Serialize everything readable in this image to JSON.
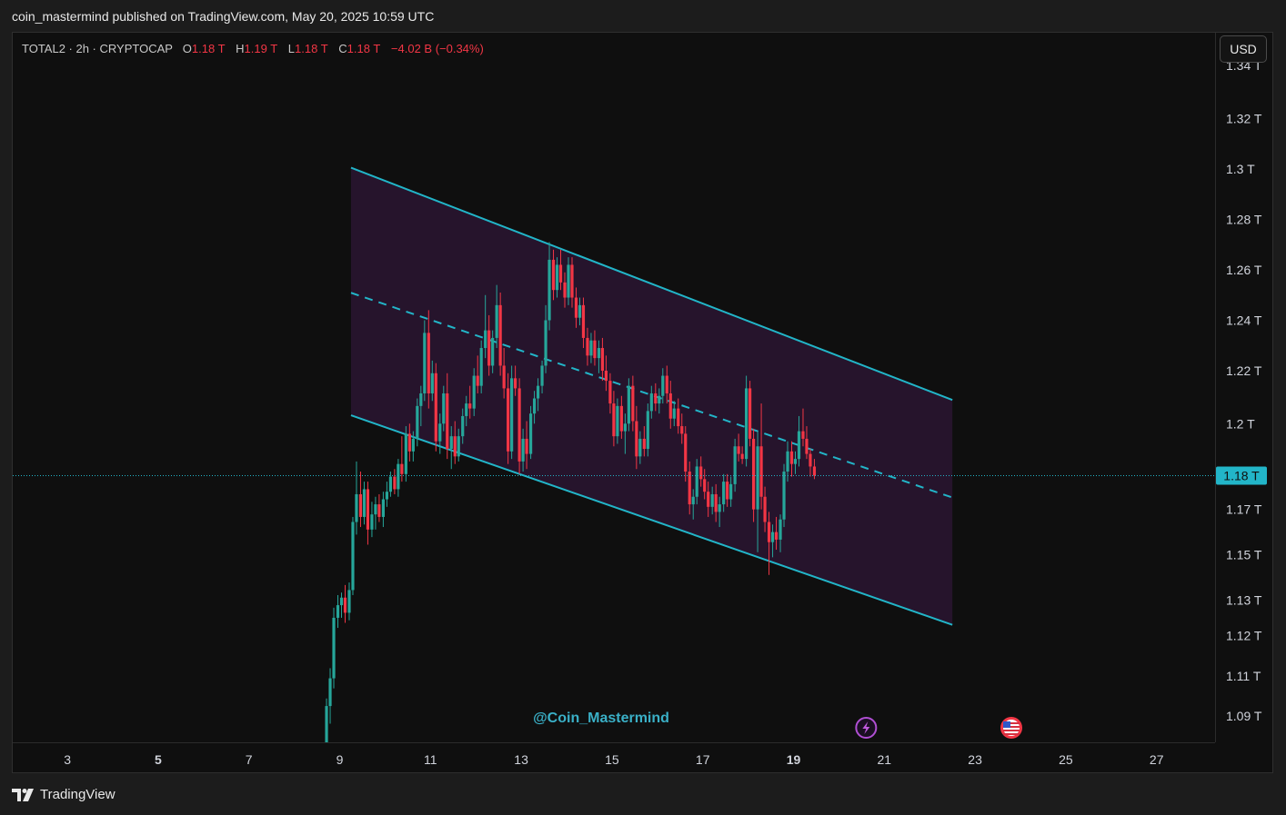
{
  "header": {
    "published_text": "coin_mastermind published on TradingView.com, May 20, 2025 10:59 UTC"
  },
  "legend": {
    "symbol": "TOTAL2 · 2h · CRYPTOCAP",
    "open_label": "O",
    "open": "1.18 T",
    "high_label": "H",
    "high": "1.19 T",
    "low_label": "L",
    "low": "1.18 T",
    "close_label": "C",
    "close": "1.18 T",
    "change": "−4.02 B (−0.34%)"
  },
  "currency_button": "USD",
  "watermark": "@Coin_Mastermind",
  "footer": {
    "brand": "TradingView"
  },
  "colors": {
    "up": "#26a69a",
    "down": "#f23645",
    "channel": "#22b5c8",
    "channel_fill": "#2a1531",
    "price_label": "#22b5c8"
  },
  "icons": {
    "events": [
      "lightning-event-icon",
      "us-flag-event-icon"
    ]
  },
  "chart_data": {
    "type": "candlestick",
    "timeframe": "2h",
    "x_ticks": [
      {
        "label": "3",
        "day": 3,
        "bold": false
      },
      {
        "label": "5",
        "day": 5,
        "bold": true
      },
      {
        "label": "7",
        "day": 7,
        "bold": false
      },
      {
        "label": "9",
        "day": 9,
        "bold": false
      },
      {
        "label": "11",
        "day": 11,
        "bold": false
      },
      {
        "label": "13",
        "day": 13,
        "bold": false
      },
      {
        "label": "15",
        "day": 15,
        "bold": false
      },
      {
        "label": "17",
        "day": 17,
        "bold": false
      },
      {
        "label": "19",
        "day": 19,
        "bold": true
      },
      {
        "label": "21",
        "day": 21,
        "bold": false
      },
      {
        "label": "23",
        "day": 23,
        "bold": false
      },
      {
        "label": "25",
        "day": 25,
        "bold": false
      },
      {
        "label": "27",
        "day": 27,
        "bold": false
      }
    ],
    "y_ticks": [
      {
        "label": "1.34 T",
        "value": 1.341
      },
      {
        "label": "1.32 T",
        "value": 1.32
      },
      {
        "label": "1.3 T",
        "value": 1.3
      },
      {
        "label": "1.28 T",
        "value": 1.28
      },
      {
        "label": "1.26 T",
        "value": 1.26
      },
      {
        "label": "1.24 T",
        "value": 1.24
      },
      {
        "label": "1.22 T",
        "value": 1.22
      },
      {
        "label": "1.2 T",
        "value": 1.199
      },
      {
        "label": "1.17 T",
        "value": 1.165
      },
      {
        "label": "1.15 T",
        "value": 1.147
      },
      {
        "label": "1.13 T",
        "value": 1.129
      },
      {
        "label": "1.12 T",
        "value": 1.115
      },
      {
        "label": "1.11 T",
        "value": 1.099
      },
      {
        "label": "1.09 T",
        "value": 1.083
      }
    ],
    "last_price": {
      "label": "1.18 T",
      "value": 1.1784
    },
    "channel": {
      "x_start": 9.25,
      "x_end": 22.5,
      "upper": [
        1.3005,
        1.2084
      ],
      "mid": [
        1.2509,
        1.1697
      ],
      "lower": [
        1.2023,
        1.1192
      ]
    },
    "events": [
      {
        "day": 20.6,
        "icon": "lightning"
      },
      {
        "day": 23.8,
        "icon": "us-flag"
      }
    ],
    "candles": [
      {
        "d": 8.62,
        "o": 1.041,
        "h": 1.057,
        "l": 1.034,
        "c": 1.053
      },
      {
        "d": 8.71,
        "o": 1.053,
        "h": 1.09,
        "l": 1.05,
        "c": 1.087
      },
      {
        "d": 8.79,
        "o": 1.087,
        "h": 1.102,
        "l": 1.08,
        "c": 1.098
      },
      {
        "d": 8.87,
        "o": 1.098,
        "h": 1.126,
        "l": 1.094,
        "c": 1.122
      },
      {
        "d": 8.96,
        "o": 1.122,
        "h": 1.131,
        "l": 1.118,
        "c": 1.127
      },
      {
        "d": 9.04,
        "o": 1.127,
        "h": 1.132,
        "l": 1.122,
        "c": 1.13
      },
      {
        "d": 9.12,
        "o": 1.13,
        "h": 1.135,
        "l": 1.12,
        "c": 1.124
      },
      {
        "d": 9.21,
        "o": 1.124,
        "h": 1.136,
        "l": 1.121,
        "c": 1.133
      },
      {
        "d": 9.29,
        "o": 1.133,
        "h": 1.162,
        "l": 1.131,
        "c": 1.16
      },
      {
        "d": 9.37,
        "o": 1.16,
        "h": 1.184,
        "l": 1.155,
        "c": 1.171
      },
      {
        "d": 9.46,
        "o": 1.171,
        "h": 1.18,
        "l": 1.158,
        "c": 1.162
      },
      {
        "d": 9.54,
        "o": 1.162,
        "h": 1.176,
        "l": 1.159,
        "c": 1.173
      },
      {
        "d": 9.62,
        "o": 1.173,
        "h": 1.176,
        "l": 1.151,
        "c": 1.157
      },
      {
        "d": 9.71,
        "o": 1.157,
        "h": 1.168,
        "l": 1.154,
        "c": 1.163
      },
      {
        "d": 9.79,
        "o": 1.163,
        "h": 1.17,
        "l": 1.157,
        "c": 1.167
      },
      {
        "d": 9.87,
        "o": 1.167,
        "h": 1.171,
        "l": 1.16,
        "c": 1.162
      },
      {
        "d": 9.96,
        "o": 1.162,
        "h": 1.172,
        "l": 1.158,
        "c": 1.169
      },
      {
        "d": 10.04,
        "o": 1.169,
        "h": 1.176,
        "l": 1.166,
        "c": 1.172
      },
      {
        "d": 10.12,
        "o": 1.172,
        "h": 1.18,
        "l": 1.17,
        "c": 1.178
      },
      {
        "d": 10.21,
        "o": 1.178,
        "h": 1.181,
        "l": 1.171,
        "c": 1.173
      },
      {
        "d": 10.29,
        "o": 1.173,
        "h": 1.185,
        "l": 1.17,
        "c": 1.183
      },
      {
        "d": 10.37,
        "o": 1.183,
        "h": 1.194,
        "l": 1.176,
        "c": 1.179
      },
      {
        "d": 10.46,
        "o": 1.179,
        "h": 1.198,
        "l": 1.176,
        "c": 1.195
      },
      {
        "d": 10.54,
        "o": 1.195,
        "h": 1.199,
        "l": 1.184,
        "c": 1.188
      },
      {
        "d": 10.62,
        "o": 1.188,
        "h": 1.196,
        "l": 1.184,
        "c": 1.193
      },
      {
        "d": 10.71,
        "o": 1.193,
        "h": 1.209,
        "l": 1.19,
        "c": 1.206
      },
      {
        "d": 10.79,
        "o": 1.206,
        "h": 1.214,
        "l": 1.198,
        "c": 1.211
      },
      {
        "d": 10.87,
        "o": 1.211,
        "h": 1.24,
        "l": 1.208,
        "c": 1.235
      },
      {
        "d": 10.96,
        "o": 1.235,
        "h": 1.244,
        "l": 1.205,
        "c": 1.211
      },
      {
        "d": 11.04,
        "o": 1.211,
        "h": 1.224,
        "l": 1.208,
        "c": 1.219
      },
      {
        "d": 11.12,
        "o": 1.219,
        "h": 1.223,
        "l": 1.188,
        "c": 1.192
      },
      {
        "d": 11.21,
        "o": 1.192,
        "h": 1.203,
        "l": 1.187,
        "c": 1.199
      },
      {
        "d": 11.29,
        "o": 1.199,
        "h": 1.214,
        "l": 1.196,
        "c": 1.211
      },
      {
        "d": 11.37,
        "o": 1.211,
        "h": 1.219,
        "l": 1.185,
        "c": 1.189
      },
      {
        "d": 11.46,
        "o": 1.189,
        "h": 1.198,
        "l": 1.181,
        "c": 1.194
      },
      {
        "d": 11.54,
        "o": 1.194,
        "h": 1.2,
        "l": 1.183,
        "c": 1.186
      },
      {
        "d": 11.62,
        "o": 1.186,
        "h": 1.197,
        "l": 1.184,
        "c": 1.194
      },
      {
        "d": 11.71,
        "o": 1.194,
        "h": 1.205,
        "l": 1.191,
        "c": 1.202
      },
      {
        "d": 11.79,
        "o": 1.202,
        "h": 1.21,
        "l": 1.198,
        "c": 1.207
      },
      {
        "d": 11.87,
        "o": 1.207,
        "h": 1.214,
        "l": 1.201,
        "c": 1.205
      },
      {
        "d": 11.96,
        "o": 1.205,
        "h": 1.221,
        "l": 1.202,
        "c": 1.218
      },
      {
        "d": 12.04,
        "o": 1.218,
        "h": 1.226,
        "l": 1.211,
        "c": 1.214
      },
      {
        "d": 12.12,
        "o": 1.214,
        "h": 1.232,
        "l": 1.211,
        "c": 1.229
      },
      {
        "d": 12.21,
        "o": 1.229,
        "h": 1.25,
        "l": 1.225,
        "c": 1.236
      },
      {
        "d": 12.29,
        "o": 1.236,
        "h": 1.242,
        "l": 1.218,
        "c": 1.222
      },
      {
        "d": 12.37,
        "o": 1.222,
        "h": 1.236,
        "l": 1.219,
        "c": 1.233
      },
      {
        "d": 12.46,
        "o": 1.233,
        "h": 1.254,
        "l": 1.229,
        "c": 1.246
      },
      {
        "d": 12.54,
        "o": 1.246,
        "h": 1.251,
        "l": 1.218,
        "c": 1.222
      },
      {
        "d": 12.62,
        "o": 1.222,
        "h": 1.229,
        "l": 1.209,
        "c": 1.213
      },
      {
        "d": 12.71,
        "o": 1.213,
        "h": 1.219,
        "l": 1.183,
        "c": 1.188
      },
      {
        "d": 12.79,
        "o": 1.188,
        "h": 1.222,
        "l": 1.185,
        "c": 1.217
      },
      {
        "d": 12.87,
        "o": 1.217,
        "h": 1.222,
        "l": 1.21,
        "c": 1.213
      },
      {
        "d": 12.96,
        "o": 1.213,
        "h": 1.217,
        "l": 1.179,
        "c": 1.184
      },
      {
        "d": 13.04,
        "o": 1.184,
        "h": 1.197,
        "l": 1.18,
        "c": 1.193
      },
      {
        "d": 13.12,
        "o": 1.193,
        "h": 1.2,
        "l": 1.181,
        "c": 1.187
      },
      {
        "d": 13.21,
        "o": 1.187,
        "h": 1.206,
        "l": 1.185,
        "c": 1.203
      },
      {
        "d": 13.29,
        "o": 1.203,
        "h": 1.212,
        "l": 1.199,
        "c": 1.209
      },
      {
        "d": 13.37,
        "o": 1.209,
        "h": 1.217,
        "l": 1.204,
        "c": 1.214
      },
      {
        "d": 13.46,
        "o": 1.214,
        "h": 1.224,
        "l": 1.211,
        "c": 1.222
      },
      {
        "d": 13.54,
        "o": 1.222,
        "h": 1.246,
        "l": 1.219,
        "c": 1.24
      },
      {
        "d": 13.62,
        "o": 1.24,
        "h": 1.271,
        "l": 1.236,
        "c": 1.264
      },
      {
        "d": 13.71,
        "o": 1.264,
        "h": 1.268,
        "l": 1.248,
        "c": 1.252
      },
      {
        "d": 13.79,
        "o": 1.252,
        "h": 1.265,
        "l": 1.249,
        "c": 1.262
      },
      {
        "d": 13.87,
        "o": 1.262,
        "h": 1.268,
        "l": 1.252,
        "c": 1.255
      },
      {
        "d": 13.96,
        "o": 1.255,
        "h": 1.259,
        "l": 1.245,
        "c": 1.249
      },
      {
        "d": 14.04,
        "o": 1.249,
        "h": 1.265,
        "l": 1.246,
        "c": 1.262
      },
      {
        "d": 14.12,
        "o": 1.262,
        "h": 1.265,
        "l": 1.245,
        "c": 1.249
      },
      {
        "d": 14.21,
        "o": 1.249,
        "h": 1.253,
        "l": 1.237,
        "c": 1.241
      },
      {
        "d": 14.29,
        "o": 1.241,
        "h": 1.249,
        "l": 1.238,
        "c": 1.246
      },
      {
        "d": 14.37,
        "o": 1.246,
        "h": 1.249,
        "l": 1.229,
        "c": 1.233
      },
      {
        "d": 14.46,
        "o": 1.233,
        "h": 1.237,
        "l": 1.222,
        "c": 1.226
      },
      {
        "d": 14.54,
        "o": 1.226,
        "h": 1.235,
        "l": 1.223,
        "c": 1.232
      },
      {
        "d": 14.62,
        "o": 1.232,
        "h": 1.236,
        "l": 1.222,
        "c": 1.225
      },
      {
        "d": 14.71,
        "o": 1.225,
        "h": 1.232,
        "l": 1.219,
        "c": 1.229
      },
      {
        "d": 14.79,
        "o": 1.229,
        "h": 1.233,
        "l": 1.216,
        "c": 1.22
      },
      {
        "d": 14.87,
        "o": 1.22,
        "h": 1.226,
        "l": 1.212,
        "c": 1.216
      },
      {
        "d": 14.96,
        "o": 1.216,
        "h": 1.219,
        "l": 1.203,
        "c": 1.207
      },
      {
        "d": 15.04,
        "o": 1.207,
        "h": 1.212,
        "l": 1.19,
        "c": 1.194
      },
      {
        "d": 15.12,
        "o": 1.194,
        "h": 1.209,
        "l": 1.191,
        "c": 1.206
      },
      {
        "d": 15.21,
        "o": 1.206,
        "h": 1.21,
        "l": 1.193,
        "c": 1.196
      },
      {
        "d": 15.29,
        "o": 1.196,
        "h": 1.203,
        "l": 1.187,
        "c": 1.199
      },
      {
        "d": 15.37,
        "o": 1.199,
        "h": 1.217,
        "l": 1.196,
        "c": 1.214
      },
      {
        "d": 15.46,
        "o": 1.214,
        "h": 1.218,
        "l": 1.196,
        "c": 1.2
      },
      {
        "d": 15.54,
        "o": 1.2,
        "h": 1.206,
        "l": 1.181,
        "c": 1.186
      },
      {
        "d": 15.62,
        "o": 1.186,
        "h": 1.196,
        "l": 1.183,
        "c": 1.193
      },
      {
        "d": 15.71,
        "o": 1.193,
        "h": 1.198,
        "l": 1.186,
        "c": 1.189
      },
      {
        "d": 15.79,
        "o": 1.189,
        "h": 1.207,
        "l": 1.186,
        "c": 1.204
      },
      {
        "d": 15.87,
        "o": 1.204,
        "h": 1.214,
        "l": 1.201,
        "c": 1.211
      },
      {
        "d": 15.96,
        "o": 1.211,
        "h": 1.215,
        "l": 1.204,
        "c": 1.207
      },
      {
        "d": 16.04,
        "o": 1.207,
        "h": 1.213,
        "l": 1.203,
        "c": 1.21
      },
      {
        "d": 16.12,
        "o": 1.21,
        "h": 1.221,
        "l": 1.207,
        "c": 1.218
      },
      {
        "d": 16.21,
        "o": 1.218,
        "h": 1.222,
        "l": 1.207,
        "c": 1.211
      },
      {
        "d": 16.29,
        "o": 1.211,
        "h": 1.216,
        "l": 1.197,
        "c": 1.201
      },
      {
        "d": 16.37,
        "o": 1.201,
        "h": 1.208,
        "l": 1.198,
        "c": 1.205
      },
      {
        "d": 16.46,
        "o": 1.205,
        "h": 1.209,
        "l": 1.195,
        "c": 1.198
      },
      {
        "d": 16.54,
        "o": 1.198,
        "h": 1.203,
        "l": 1.191,
        "c": 1.195
      },
      {
        "d": 16.62,
        "o": 1.195,
        "h": 1.198,
        "l": 1.176,
        "c": 1.18
      },
      {
        "d": 16.71,
        "o": 1.18,
        "h": 1.184,
        "l": 1.163,
        "c": 1.167
      },
      {
        "d": 16.79,
        "o": 1.167,
        "h": 1.173,
        "l": 1.161,
        "c": 1.17
      },
      {
        "d": 16.87,
        "o": 1.17,
        "h": 1.185,
        "l": 1.167,
        "c": 1.182
      },
      {
        "d": 16.96,
        "o": 1.182,
        "h": 1.186,
        "l": 1.174,
        "c": 1.177
      },
      {
        "d": 17.04,
        "o": 1.177,
        "h": 1.181,
        "l": 1.169,
        "c": 1.172
      },
      {
        "d": 17.12,
        "o": 1.172,
        "h": 1.176,
        "l": 1.162,
        "c": 1.166
      },
      {
        "d": 17.21,
        "o": 1.166,
        "h": 1.174,
        "l": 1.163,
        "c": 1.171
      },
      {
        "d": 17.29,
        "o": 1.171,
        "h": 1.175,
        "l": 1.16,
        "c": 1.164
      },
      {
        "d": 17.37,
        "o": 1.164,
        "h": 1.17,
        "l": 1.158,
        "c": 1.167
      },
      {
        "d": 17.46,
        "o": 1.167,
        "h": 1.179,
        "l": 1.164,
        "c": 1.176
      },
      {
        "d": 17.54,
        "o": 1.176,
        "h": 1.179,
        "l": 1.166,
        "c": 1.169
      },
      {
        "d": 17.62,
        "o": 1.169,
        "h": 1.178,
        "l": 1.166,
        "c": 1.175
      },
      {
        "d": 17.71,
        "o": 1.175,
        "h": 1.193,
        "l": 1.172,
        "c": 1.19
      },
      {
        "d": 17.79,
        "o": 1.19,
        "h": 1.195,
        "l": 1.184,
        "c": 1.187
      },
      {
        "d": 17.87,
        "o": 1.187,
        "h": 1.19,
        "l": 1.183,
        "c": 1.185
      },
      {
        "d": 17.96,
        "o": 1.185,
        "h": 1.218,
        "l": 1.182,
        "c": 1.213
      },
      {
        "d": 18.04,
        "o": 1.213,
        "h": 1.216,
        "l": 1.19,
        "c": 1.193
      },
      {
        "d": 18.12,
        "o": 1.193,
        "h": 1.197,
        "l": 1.16,
        "c": 1.165
      },
      {
        "d": 18.21,
        "o": 1.165,
        "h": 1.196,
        "l": 1.148,
        "c": 1.19
      },
      {
        "d": 18.29,
        "o": 1.19,
        "h": 1.207,
        "l": 1.165,
        "c": 1.17
      },
      {
        "d": 18.37,
        "o": 1.17,
        "h": 1.174,
        "l": 1.156,
        "c": 1.16
      },
      {
        "d": 18.46,
        "o": 1.16,
        "h": 1.164,
        "l": 1.139,
        "c": 1.152
      },
      {
        "d": 18.54,
        "o": 1.152,
        "h": 1.159,
        "l": 1.146,
        "c": 1.156
      },
      {
        "d": 18.62,
        "o": 1.156,
        "h": 1.162,
        "l": 1.149,
        "c": 1.153
      },
      {
        "d": 18.71,
        "o": 1.153,
        "h": 1.163,
        "l": 1.148,
        "c": 1.161
      },
      {
        "d": 18.79,
        "o": 1.161,
        "h": 1.183,
        "l": 1.158,
        "c": 1.18
      },
      {
        "d": 18.87,
        "o": 1.18,
        "h": 1.192,
        "l": 1.176,
        "c": 1.188
      },
      {
        "d": 18.96,
        "o": 1.188,
        "h": 1.192,
        "l": 1.178,
        "c": 1.183
      },
      {
        "d": 19.04,
        "o": 1.183,
        "h": 1.188,
        "l": 1.179,
        "c": 1.185
      },
      {
        "d": 19.12,
        "o": 1.185,
        "h": 1.202,
        "l": 1.182,
        "c": 1.196
      },
      {
        "d": 19.21,
        "o": 1.196,
        "h": 1.205,
        "l": 1.19,
        "c": 1.193
      },
      {
        "d": 19.29,
        "o": 1.193,
        "h": 1.198,
        "l": 1.185,
        "c": 1.187
      },
      {
        "d": 19.37,
        "o": 1.187,
        "h": 1.189,
        "l": 1.178,
        "c": 1.182
      },
      {
        "d": 19.46,
        "o": 1.182,
        "h": 1.185,
        "l": 1.177,
        "c": 1.1784
      }
    ]
  }
}
